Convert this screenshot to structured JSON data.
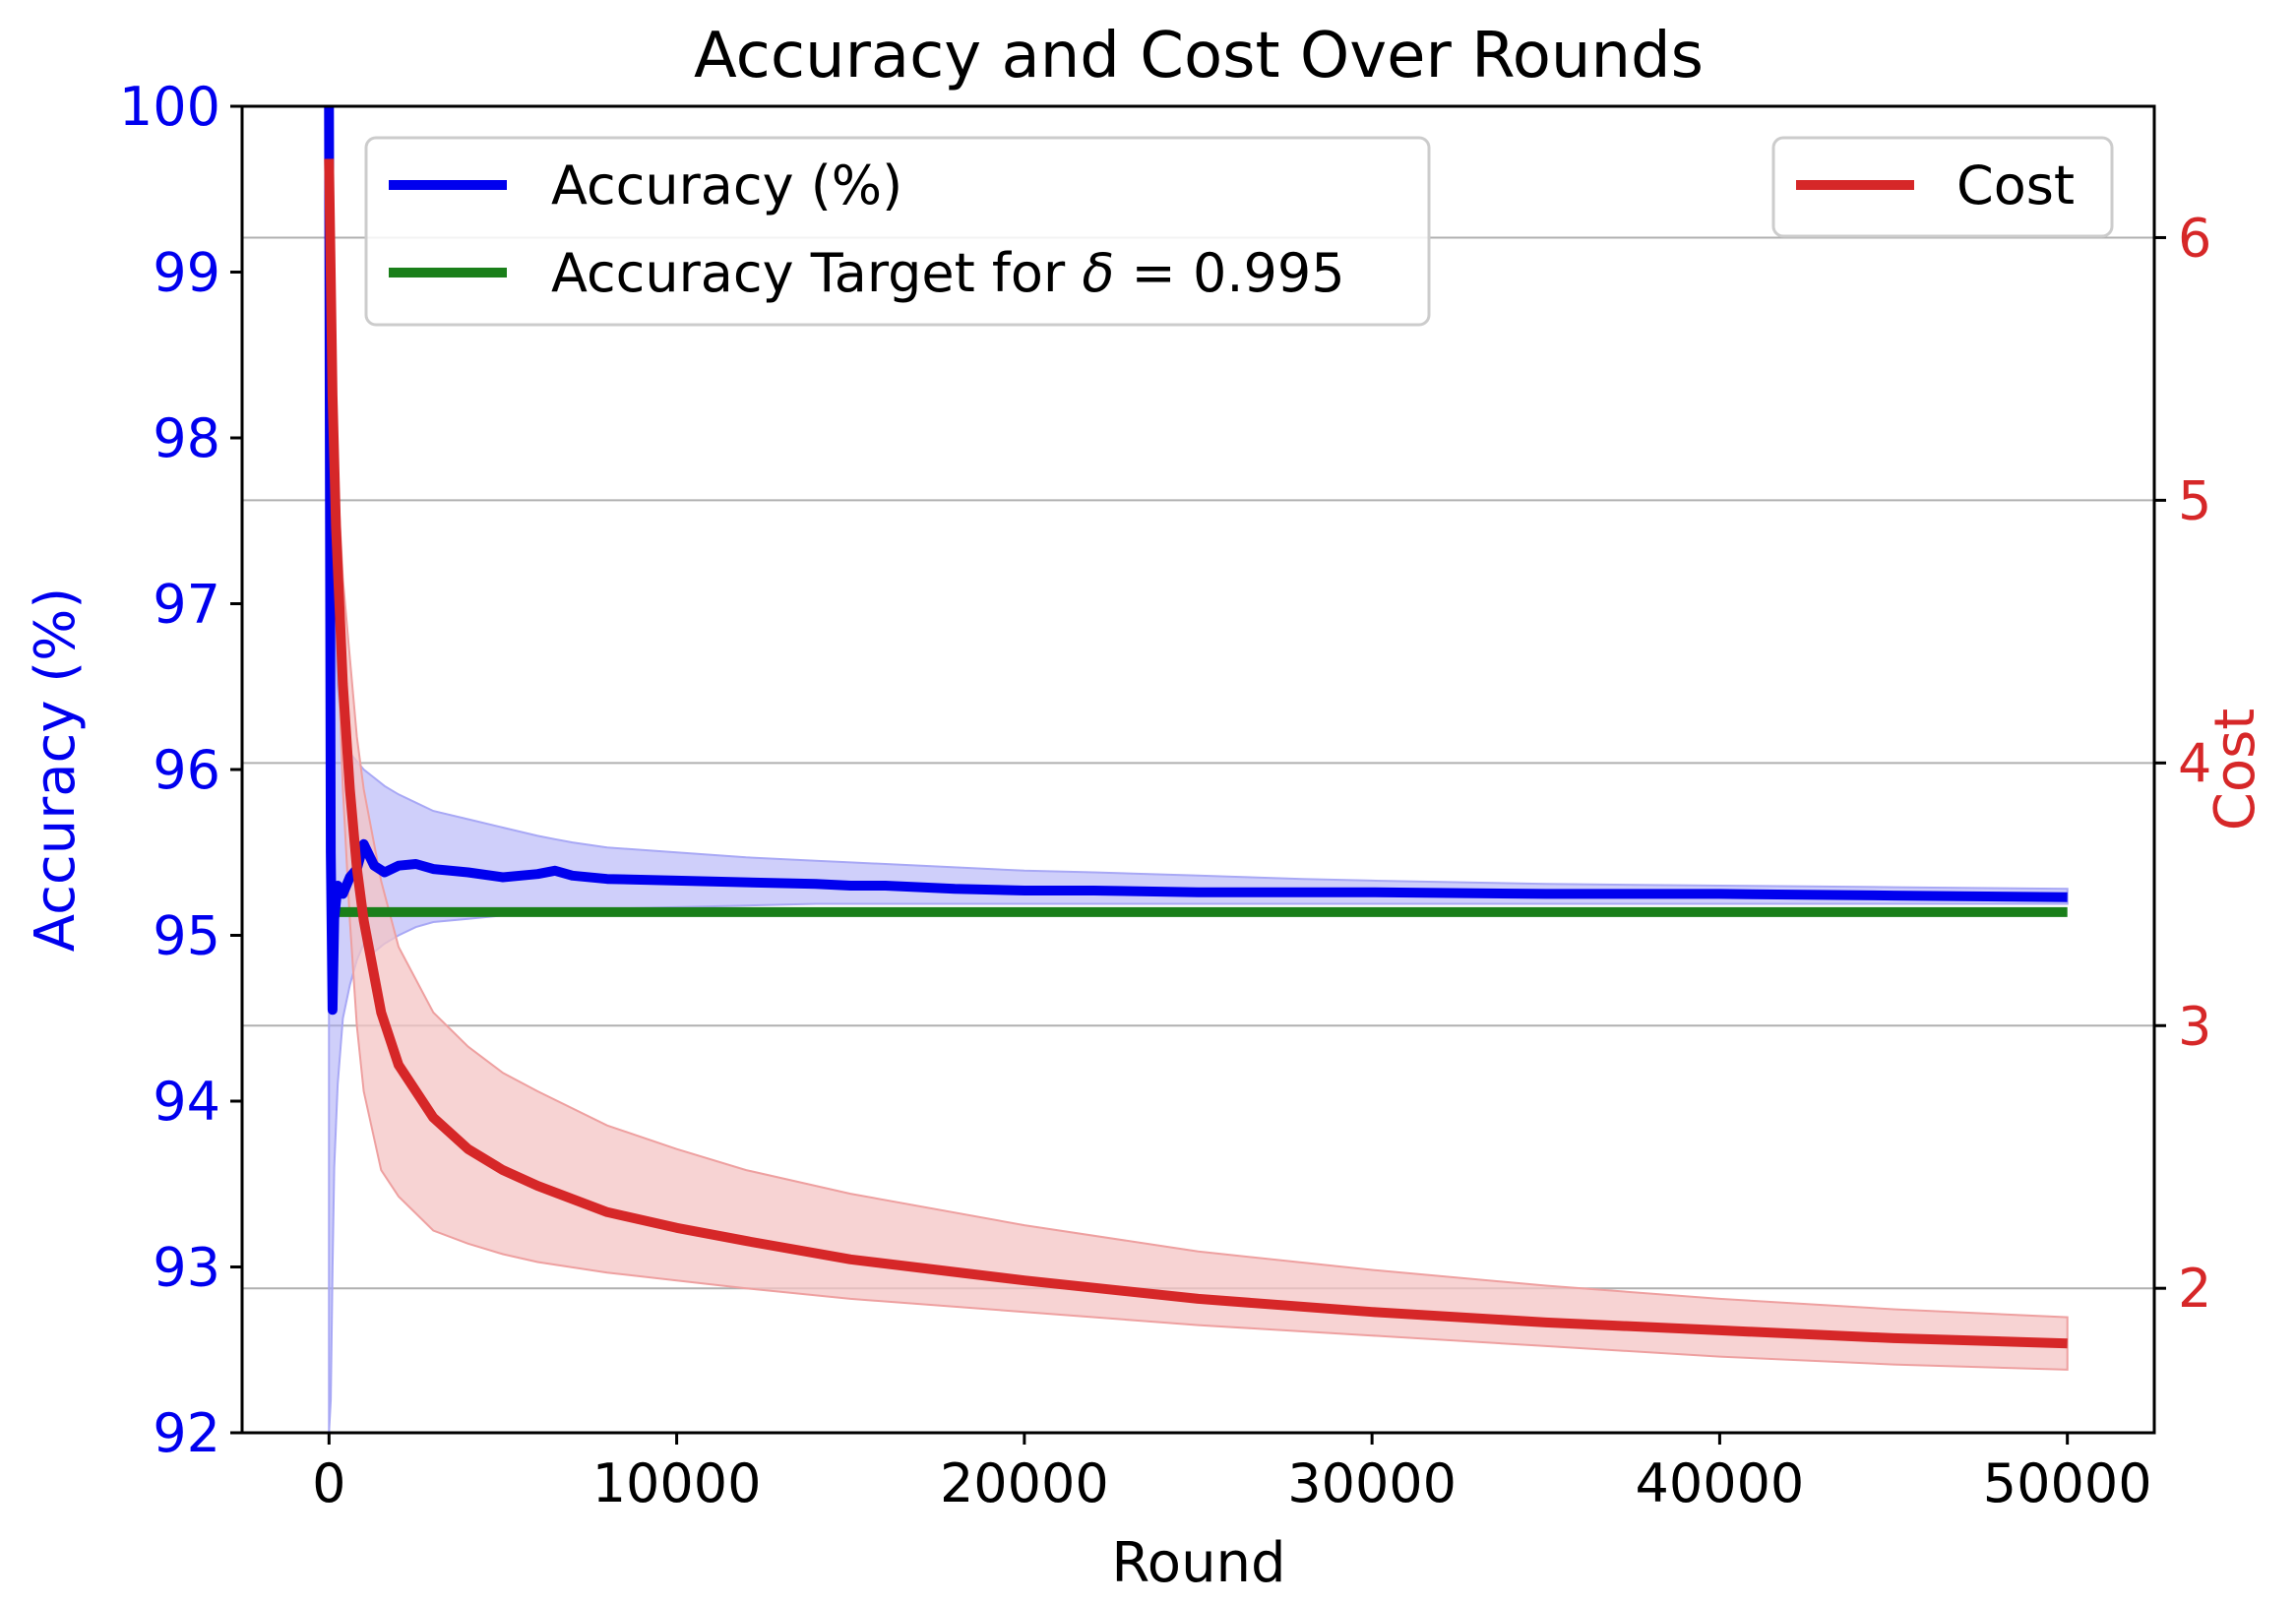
{
  "chart_data": {
    "type": "line",
    "title": "Accuracy and Cost Over Rounds",
    "xlabel": "Round",
    "ylabel_left": "Accuracy (%)",
    "ylabel_right": "Cost",
    "xlim": [
      -2500,
      52500
    ],
    "ylim_left": [
      92,
      100
    ],
    "ylim_right": [
      1.45,
      6.5
    ],
    "x_ticks": [
      0,
      10000,
      20000,
      30000,
      40000,
      50000
    ],
    "x_tick_labels": [
      "0",
      "10000",
      "20000",
      "30000",
      "40000",
      "50000"
    ],
    "y_left_ticks": [
      92,
      93,
      94,
      95,
      96,
      97,
      98,
      99,
      100
    ],
    "y_left_tick_labels": [
      "92",
      "93",
      "94",
      "95",
      "96",
      "97",
      "98",
      "99",
      "100"
    ],
    "y_right_ticks": [
      2,
      3,
      4,
      5,
      6
    ],
    "y_right_tick_labels": [
      "2",
      "3",
      "4",
      "5",
      "6"
    ],
    "grid": "horizontal lines at right-axis ticks",
    "colors": {
      "accuracy": "#0000ee",
      "accuracy_band": "#a8a8f5",
      "target": "#1a7f1a",
      "cost": "#d62728",
      "cost_band": "#f4c4c4",
      "left_axis_text": "#0000ee",
      "right_axis_text": "#d62728"
    },
    "legend_left": {
      "placement": "upper-left",
      "items": [
        {
          "label": "Accuracy (%)",
          "series": "accuracy"
        },
        {
          "label_prefix": "Accuracy Target for ",
          "label_symbol": "δ",
          "label_suffix": " = 0.995",
          "series": "target"
        }
      ]
    },
    "legend_right": {
      "placement": "upper-right",
      "items": [
        {
          "label": "Cost",
          "series": "cost"
        }
      ]
    },
    "series": [
      {
        "name": "Accuracy (%)",
        "axis": "left",
        "x": [
          0,
          50,
          100,
          150,
          250,
          400,
          600,
          800,
          1000,
          1300,
          1600,
          2000,
          2500,
          3000,
          4000,
          5000,
          6000,
          6500,
          7000,
          8000,
          10000,
          12000,
          14000,
          15000,
          16000,
          18000,
          20000,
          22000,
          25000,
          28000,
          30000,
          35000,
          40000,
          45000,
          50000
        ],
        "y": [
          100,
          95.5,
          94.55,
          95.1,
          95.3,
          95.25,
          95.35,
          95.4,
          95.55,
          95.42,
          95.38,
          95.42,
          95.43,
          95.4,
          95.38,
          95.35,
          95.37,
          95.39,
          95.36,
          95.34,
          95.33,
          95.32,
          95.31,
          95.3,
          95.3,
          95.28,
          95.27,
          95.27,
          95.26,
          95.26,
          95.26,
          95.25,
          95.25,
          95.24,
          95.23
        ],
        "band_upper": [
          100,
          99.5,
          98.0,
          97.0,
          96.5,
          96.2,
          96.1,
          96.05,
          96.0,
          95.95,
          95.9,
          95.85,
          95.8,
          95.75,
          95.7,
          95.65,
          95.6,
          95.58,
          95.56,
          95.53,
          95.5,
          95.47,
          95.45,
          95.44,
          95.43,
          95.41,
          95.39,
          95.38,
          95.36,
          95.34,
          95.33,
          95.31,
          95.3,
          95.29,
          95.28
        ],
        "band_lower": [
          92,
          92.2,
          93.0,
          93.6,
          94.1,
          94.5,
          94.7,
          94.85,
          94.95,
          94.9,
          94.95,
          95.0,
          95.05,
          95.08,
          95.1,
          95.12,
          95.13,
          95.14,
          95.15,
          95.16,
          95.17,
          95.18,
          95.19,
          95.19,
          95.19,
          95.19,
          95.19,
          95.19,
          95.19,
          95.19,
          95.19,
          95.19,
          95.19,
          95.19,
          95.19
        ]
      },
      {
        "name": "Accuracy Target for δ = 0.995",
        "axis": "left",
        "x": [
          0,
          50000
        ],
        "y": [
          95.14,
          95.14
        ]
      },
      {
        "name": "Cost",
        "axis": "right",
        "x": [
          0,
          100,
          200,
          400,
          600,
          800,
          1000,
          1500,
          2000,
          3000,
          4000,
          5000,
          6000,
          8000,
          10000,
          12000,
          15000,
          20000,
          25000,
          30000,
          35000,
          40000,
          45000,
          50000
        ],
        "y": [
          6.3,
          5.4,
          4.9,
          4.3,
          3.9,
          3.6,
          3.4,
          3.05,
          2.85,
          2.65,
          2.53,
          2.45,
          2.39,
          2.29,
          2.23,
          2.18,
          2.11,
          2.03,
          1.96,
          1.91,
          1.87,
          1.84,
          1.81,
          1.79
        ],
        "band_upper": [
          6.3,
          5.6,
          5.2,
          4.7,
          4.4,
          4.1,
          3.9,
          3.55,
          3.3,
          3.05,
          2.92,
          2.82,
          2.75,
          2.62,
          2.53,
          2.45,
          2.36,
          2.24,
          2.14,
          2.07,
          2.01,
          1.96,
          1.92,
          1.89
        ],
        "band_lower": [
          6.3,
          5.2,
          4.6,
          3.9,
          3.4,
          3.0,
          2.75,
          2.45,
          2.35,
          2.22,
          2.17,
          2.13,
          2.1,
          2.06,
          2.03,
          2.0,
          1.96,
          1.91,
          1.86,
          1.82,
          1.78,
          1.74,
          1.71,
          1.69
        ]
      }
    ]
  }
}
